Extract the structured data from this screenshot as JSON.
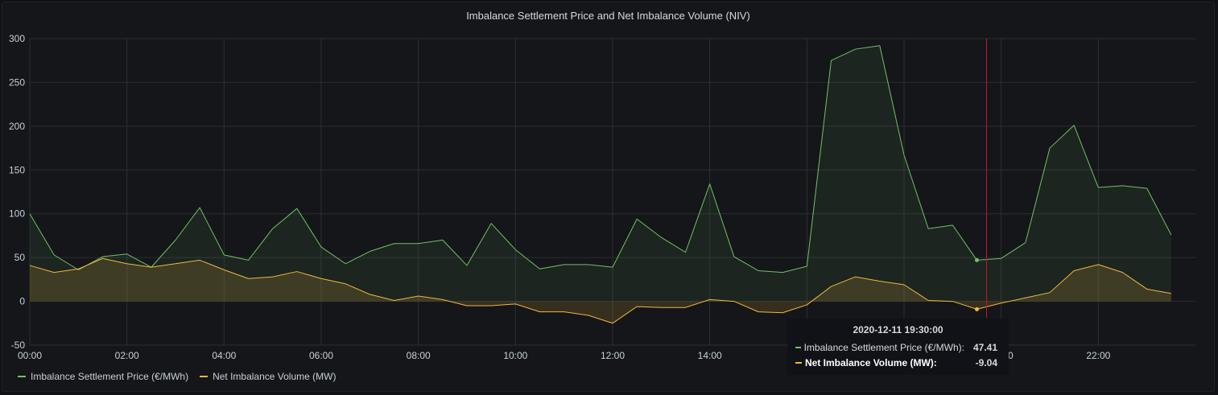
{
  "panel": {
    "title": "Imbalance Settlement Price and Net Imbalance Volume (NIV)"
  },
  "chart_data": {
    "type": "area",
    "title": "Imbalance Settlement Price and Net Imbalance Volume (NIV)",
    "xlabel": "",
    "ylabel": "",
    "ylim": [
      -50,
      300
    ],
    "yticks": [
      300,
      250,
      200,
      150,
      100,
      50,
      0,
      -50
    ],
    "xlim": [
      "00:00",
      "24:00"
    ],
    "xtick_labels": [
      "00:00",
      "02:00",
      "04:00",
      "06:00",
      "08:00",
      "10:00",
      "12:00",
      "14:00",
      "16:00",
      "18:00",
      "20:00",
      "22:00"
    ],
    "grid": true,
    "legend_position": "bottom-left",
    "x": [
      "00:00",
      "00:30",
      "01:00",
      "01:30",
      "02:00",
      "02:30",
      "03:00",
      "03:30",
      "04:00",
      "04:30",
      "05:00",
      "05:30",
      "06:00",
      "06:30",
      "07:00",
      "07:30",
      "08:00",
      "08:30",
      "09:00",
      "09:30",
      "10:00",
      "10:30",
      "11:00",
      "11:30",
      "12:00",
      "12:30",
      "13:00",
      "13:30",
      "14:00",
      "14:30",
      "15:00",
      "15:30",
      "16:00",
      "16:30",
      "17:00",
      "17:30",
      "18:00",
      "18:30",
      "19:00",
      "19:30",
      "20:00",
      "20:30",
      "21:00",
      "21:30",
      "22:00",
      "22:30",
      "23:00",
      "23:30"
    ],
    "series": [
      {
        "name": "Imbalance Settlement Price (€/MWh)",
        "color": "#73bf69",
        "values": [
          100,
          53,
          36,
          51,
          54,
          39,
          70,
          107,
          53,
          47,
          83,
          106,
          62,
          43,
          57,
          66,
          66,
          70,
          41,
          89,
          59,
          37,
          42,
          42,
          39,
          94,
          73,
          56,
          134,
          51,
          35,
          33,
          40,
          275,
          288,
          292,
          167,
          83,
          87,
          47,
          49,
          67,
          175,
          201,
          130,
          132,
          129,
          76
        ]
      },
      {
        "name": "Net Imbalance Volume (MW)",
        "color": "#f2b63f",
        "values": [
          41,
          33,
          37,
          49,
          43,
          39,
          43,
          47,
          36,
          26,
          28,
          34,
          26,
          20,
          8,
          1,
          6,
          2,
          -5,
          -5,
          -3,
          -12,
          -12,
          -16,
          -25,
          -6,
          -7,
          -7,
          2,
          0,
          -12,
          -13,
          -4,
          17,
          28,
          23,
          19,
          1,
          0,
          -9,
          -2,
          4,
          10,
          35,
          42,
          33,
          14,
          9
        ]
      }
    ],
    "hover": {
      "time_label": "19:30",
      "marker": "red-vertical-line"
    }
  },
  "tooltip": {
    "time": "2020-12-11 19:30:00",
    "rows": [
      {
        "label": "Imbalance Settlement Price (€/MWh):",
        "value": "47.41",
        "color": "#73bf69",
        "highlighted": false
      },
      {
        "label": "Net Imbalance Volume (MW):",
        "value": "-9.04",
        "color": "#f2b63f",
        "highlighted": true
      }
    ]
  },
  "legend": {
    "items": [
      {
        "label": "Imbalance Settlement Price (€/MWh)",
        "color": "#73bf69"
      },
      {
        "label": "Net Imbalance Volume (MW)",
        "color": "#f2b63f"
      }
    ]
  }
}
